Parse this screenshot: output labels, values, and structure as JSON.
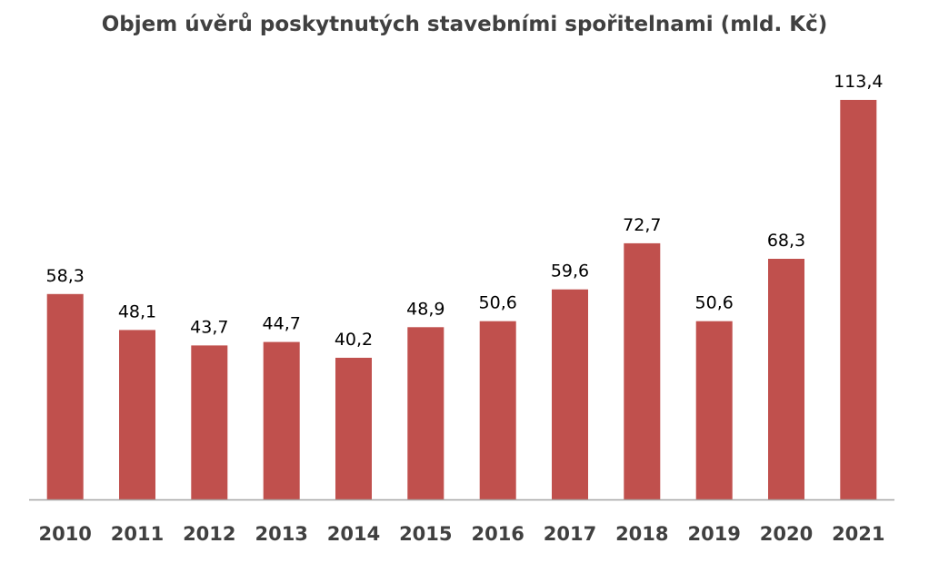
{
  "chart_data": {
    "type": "bar",
    "title": "Objem úvěrů poskytnutých stavebními spořitelnami (mld. Kč)",
    "xlabel": "",
    "ylabel": "",
    "categories": [
      "2010",
      "2011",
      "2012",
      "2013",
      "2014",
      "2015",
      "2016",
      "2017",
      "2018",
      "2019",
      "2020",
      "2021"
    ],
    "values": [
      58.3,
      48.1,
      43.7,
      44.7,
      40.2,
      48.9,
      50.6,
      59.6,
      72.7,
      50.6,
      68.3,
      113.4
    ],
    "value_labels": [
      "58,3",
      "48,1",
      "43,7",
      "44,7",
      "40,2",
      "48,9",
      "50,6",
      "59,6",
      "72,7",
      "50,6",
      "68,3",
      "113,4"
    ],
    "ylim": [
      0,
      113.4
    ],
    "grid": false,
    "legend": "none",
    "bar_color": "#c0504d",
    "axis_color": "#a6a6a6"
  }
}
